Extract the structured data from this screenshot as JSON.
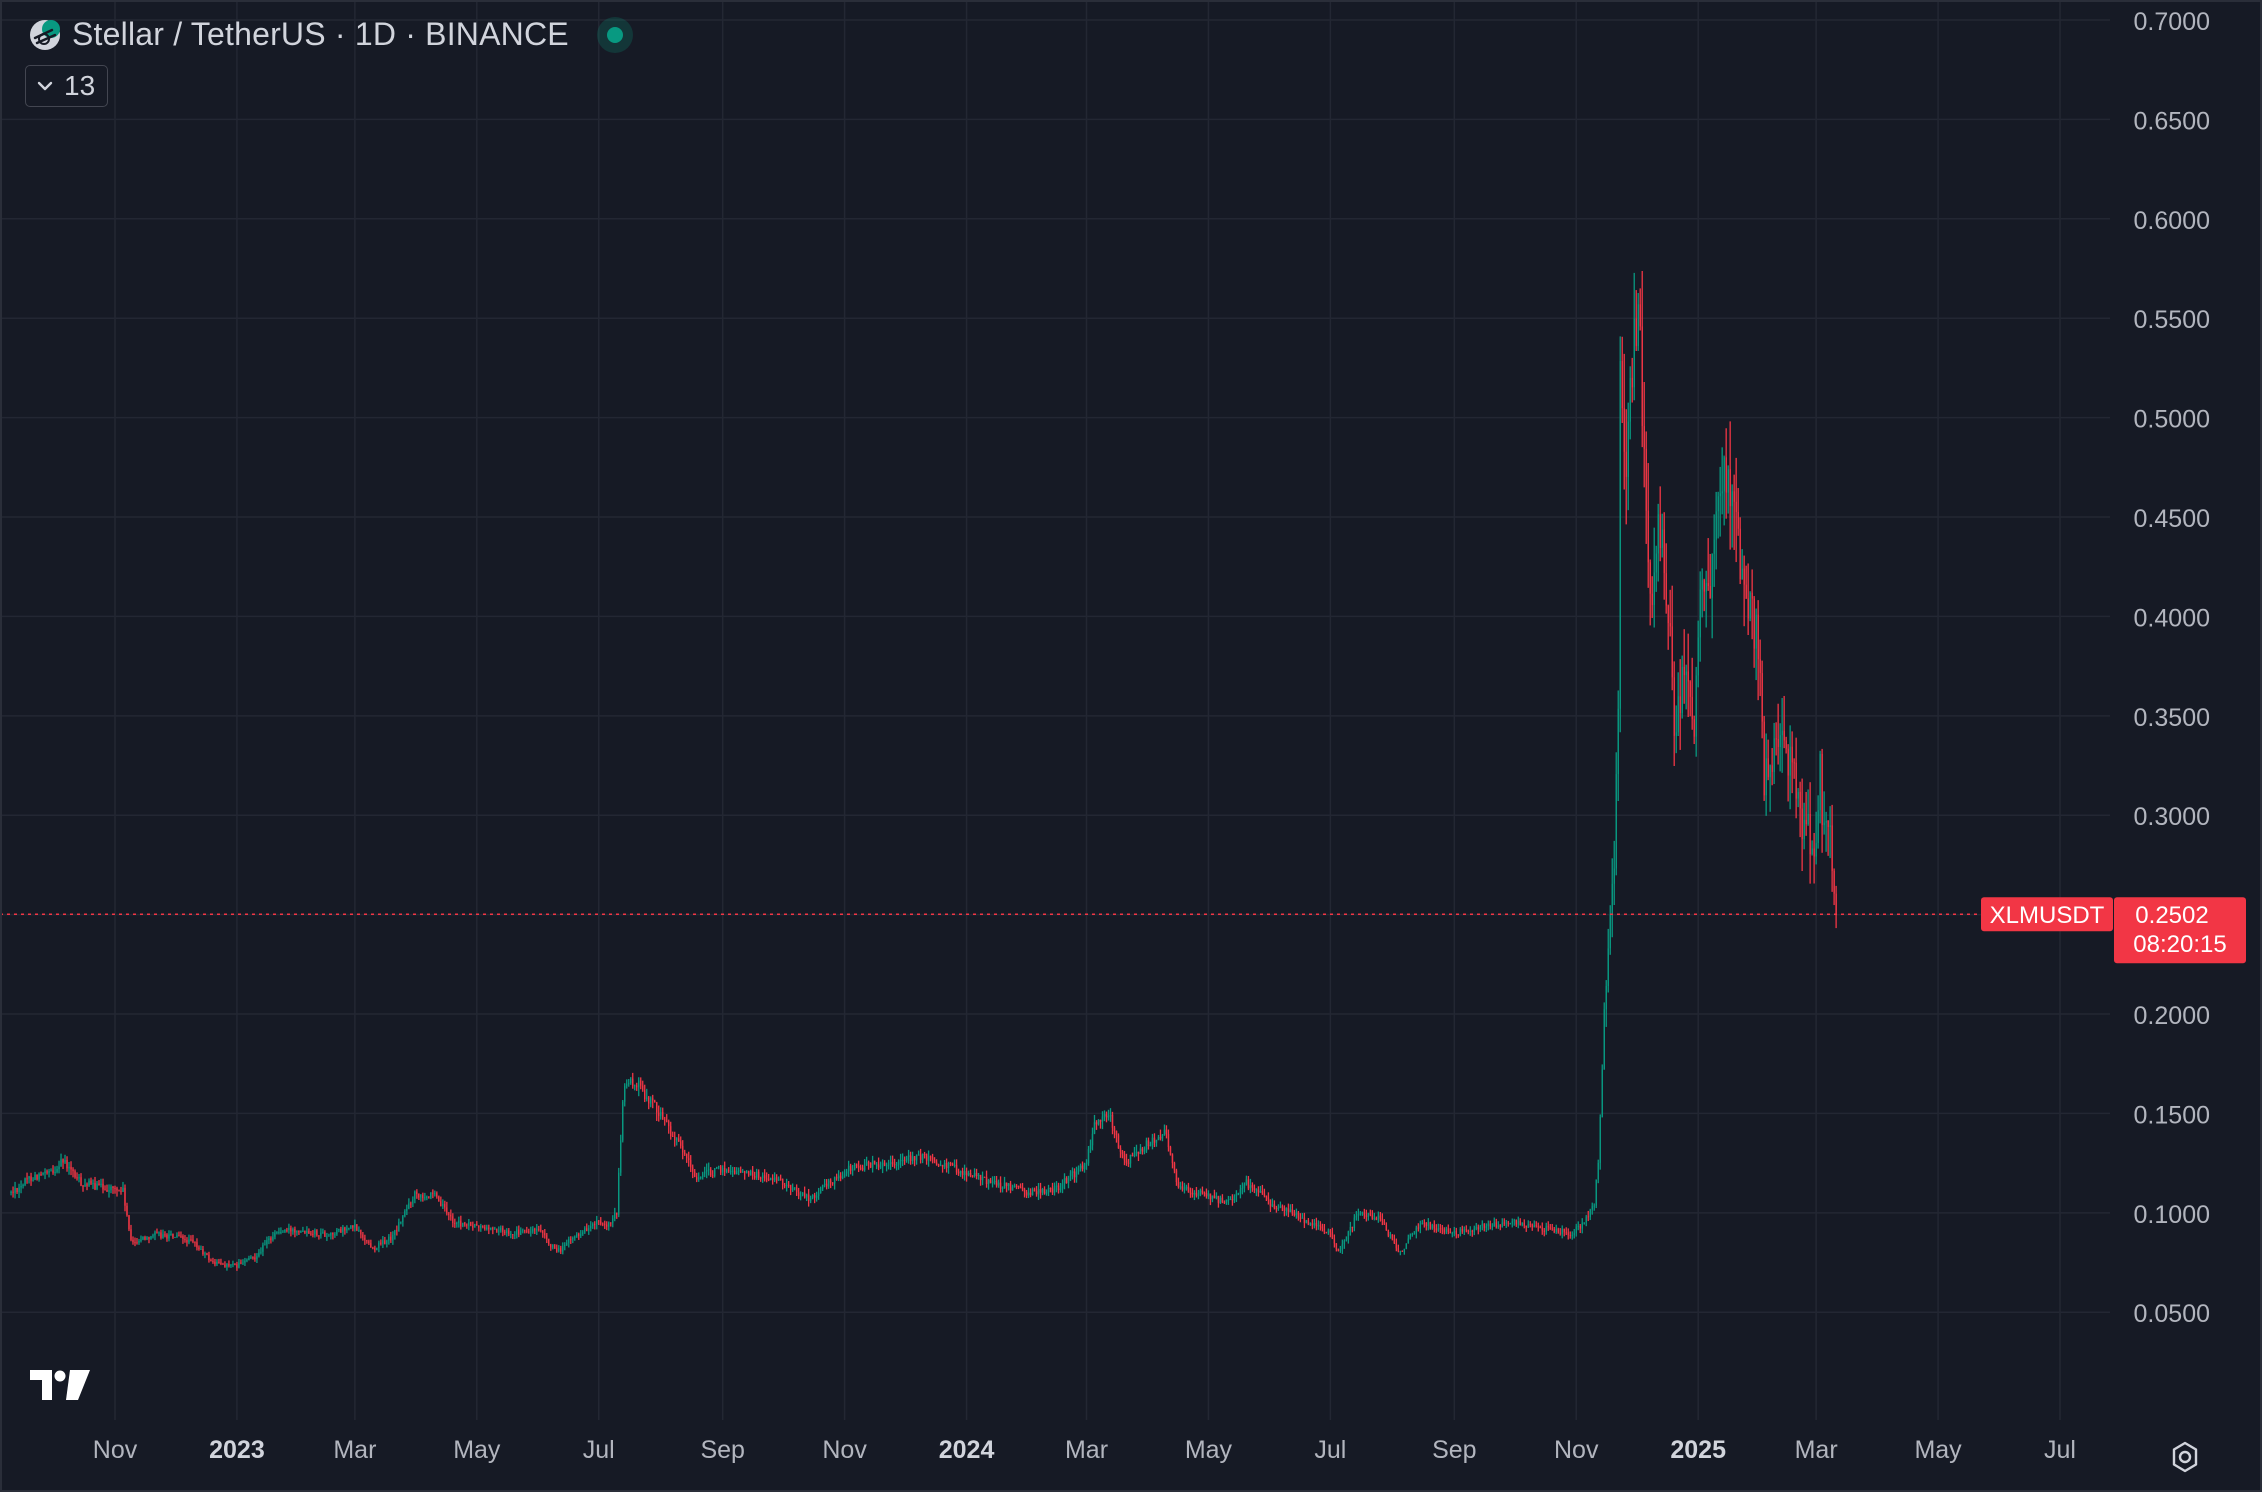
{
  "header": {
    "title": "Stellar / TetherUS · 1D · BINANCE",
    "indicator_count": "13"
  },
  "colors": {
    "background": "#161a25",
    "grid": "#232733",
    "text": "#b2b5be",
    "up": "#089981",
    "down": "#f23645",
    "price_line": "#f23645"
  },
  "icons": {
    "symbol": "stellar-logo-icon",
    "status": "market-open-dot-icon",
    "collapse": "chevron-down-icon",
    "brand": "tradingview-logo-icon",
    "settings": "settings-gear-icon"
  },
  "price_label": {
    "symbol": "XLMUSDT",
    "price": "0.2502",
    "countdown": "08:20:15"
  },
  "chart_data": {
    "type": "candlestick",
    "ylim": [
      0.03,
      0.7
    ],
    "y_ticks": [
      "0.7000",
      "0.6500",
      "0.6000",
      "0.5500",
      "0.5000",
      "0.4500",
      "0.4000",
      "0.3500",
      "0.3000",
      "0.2500",
      "0.2000",
      "0.1500",
      "0.1000",
      "0.0500"
    ],
    "y_tick_values": [
      0.7,
      0.65,
      0.6,
      0.55,
      0.5,
      0.45,
      0.4,
      0.35,
      0.3,
      0.25,
      0.2,
      0.15,
      0.1,
      0.05
    ],
    "x_ticks": [
      {
        "label": "Nov",
        "date": "2022-11-01",
        "bold": false
      },
      {
        "label": "2023",
        "date": "2023-01-01",
        "bold": true
      },
      {
        "label": "Mar",
        "date": "2023-03-01",
        "bold": false
      },
      {
        "label": "May",
        "date": "2023-05-01",
        "bold": false
      },
      {
        "label": "Jul",
        "date": "2023-07-01",
        "bold": false
      },
      {
        "label": "Sep",
        "date": "2023-09-01",
        "bold": false
      },
      {
        "label": "Nov",
        "date": "2023-11-01",
        "bold": false
      },
      {
        "label": "2024",
        "date": "2024-01-01",
        "bold": true
      },
      {
        "label": "Mar",
        "date": "2024-03-01",
        "bold": false
      },
      {
        "label": "May",
        "date": "2024-05-01",
        "bold": false
      },
      {
        "label": "Jul",
        "date": "2024-07-01",
        "bold": false
      },
      {
        "label": "Sep",
        "date": "2024-09-01",
        "bold": false
      },
      {
        "label": "Nov",
        "date": "2024-11-01",
        "bold": false
      },
      {
        "label": "2025",
        "date": "2025-01-01",
        "bold": true
      },
      {
        "label": "Mar",
        "date": "2025-03-01",
        "bold": false
      },
      {
        "label": "May",
        "date": "2025-05-01",
        "bold": false
      },
      {
        "label": "Jul",
        "date": "2025-07-01",
        "bold": false
      }
    ],
    "last_close": 0.2502,
    "series": [
      {
        "interval": "1D",
        "closes": [
          [
            "2022-09-10",
            0.11
          ],
          [
            "2022-09-20",
            0.118
          ],
          [
            "2022-10-01",
            0.12
          ],
          [
            "2022-10-05",
            0.127
          ],
          [
            "2022-10-15",
            0.115
          ],
          [
            "2022-10-25",
            0.113
          ],
          [
            "2022-11-05",
            0.111
          ],
          [
            "2022-11-09",
            0.085
          ],
          [
            "2022-11-20",
            0.089
          ],
          [
            "2022-12-01",
            0.088
          ],
          [
            "2022-12-10",
            0.085
          ],
          [
            "2022-12-20",
            0.075
          ],
          [
            "2022-12-31",
            0.073
          ],
          [
            "2023-01-10",
            0.078
          ],
          [
            "2023-01-20",
            0.09
          ],
          [
            "2023-02-01",
            0.092
          ],
          [
            "2023-02-15",
            0.089
          ],
          [
            "2023-03-01",
            0.093
          ],
          [
            "2023-03-10",
            0.082
          ],
          [
            "2023-03-20",
            0.088
          ],
          [
            "2023-03-31",
            0.11
          ],
          [
            "2023-04-10",
            0.108
          ],
          [
            "2023-04-20",
            0.095
          ],
          [
            "2023-05-01",
            0.093
          ],
          [
            "2023-05-20",
            0.09
          ],
          [
            "2023-06-01",
            0.091
          ],
          [
            "2023-06-10",
            0.08
          ],
          [
            "2023-06-20",
            0.089
          ],
          [
            "2023-06-30",
            0.095
          ],
          [
            "2023-07-05",
            0.092
          ],
          [
            "2023-07-10",
            0.1
          ],
          [
            "2023-07-13",
            0.155
          ],
          [
            "2023-07-14",
            0.165
          ],
          [
            "2023-07-20",
            0.165
          ],
          [
            "2023-08-01",
            0.15
          ],
          [
            "2023-08-15",
            0.125
          ],
          [
            "2023-08-18",
            0.118
          ],
          [
            "2023-09-01",
            0.122
          ],
          [
            "2023-09-15",
            0.12
          ],
          [
            "2023-10-01",
            0.115
          ],
          [
            "2023-10-15",
            0.107
          ],
          [
            "2023-10-24",
            0.115
          ],
          [
            "2023-11-05",
            0.123
          ],
          [
            "2023-11-20",
            0.125
          ],
          [
            "2023-12-10",
            0.128
          ],
          [
            "2023-12-20",
            0.125
          ],
          [
            "2024-01-01",
            0.12
          ],
          [
            "2024-01-15",
            0.115
          ],
          [
            "2024-02-01",
            0.11
          ],
          [
            "2024-02-15",
            0.112
          ],
          [
            "2024-03-01",
            0.125
          ],
          [
            "2024-03-05",
            0.145
          ],
          [
            "2024-03-12",
            0.15
          ],
          [
            "2024-03-20",
            0.125
          ],
          [
            "2024-04-01",
            0.135
          ],
          [
            "2024-04-10",
            0.14
          ],
          [
            "2024-04-15",
            0.115
          ],
          [
            "2024-04-25",
            0.11
          ],
          [
            "2024-05-10",
            0.105
          ],
          [
            "2024-05-20",
            0.115
          ],
          [
            "2024-06-01",
            0.105
          ],
          [
            "2024-06-15",
            0.098
          ],
          [
            "2024-07-01",
            0.09
          ],
          [
            "2024-07-05",
            0.08
          ],
          [
            "2024-07-15",
            0.1
          ],
          [
            "2024-07-25",
            0.098
          ],
          [
            "2024-08-05",
            0.08
          ],
          [
            "2024-08-15",
            0.095
          ],
          [
            "2024-09-01",
            0.09
          ],
          [
            "2024-09-15",
            0.093
          ],
          [
            "2024-10-01",
            0.095
          ],
          [
            "2024-10-15",
            0.092
          ],
          [
            "2024-10-30",
            0.09
          ],
          [
            "2024-11-05",
            0.095
          ],
          [
            "2024-11-10",
            0.105
          ],
          [
            "2024-11-12",
            0.125
          ],
          [
            "2024-11-15",
            0.2
          ],
          [
            "2024-11-17",
            0.24
          ],
          [
            "2024-11-20",
            0.27
          ],
          [
            "2024-11-22",
            0.35
          ],
          [
            "2024-11-23",
            0.52
          ],
          [
            "2024-11-26",
            0.47
          ],
          [
            "2024-11-29",
            0.53
          ],
          [
            "2024-12-02",
            0.56
          ],
          [
            "2024-12-05",
            0.47
          ],
          [
            "2024-12-09",
            0.4
          ],
          [
            "2024-12-12",
            0.44
          ],
          [
            "2024-12-16",
            0.42
          ],
          [
            "2024-12-20",
            0.35
          ],
          [
            "2024-12-25",
            0.37
          ],
          [
            "2024-12-30",
            0.34
          ],
          [
            "2025-01-03",
            0.42
          ],
          [
            "2025-01-07",
            0.41
          ],
          [
            "2025-01-10",
            0.44
          ],
          [
            "2025-01-16",
            0.48
          ],
          [
            "2025-01-20",
            0.44
          ],
          [
            "2025-01-24",
            0.42
          ],
          [
            "2025-01-28",
            0.4
          ],
          [
            "2025-02-01",
            0.38
          ],
          [
            "2025-02-03",
            0.32
          ],
          [
            "2025-02-07",
            0.33
          ],
          [
            "2025-02-12",
            0.34
          ],
          [
            "2025-02-18",
            0.32
          ],
          [
            "2025-02-21",
            0.3
          ],
          [
            "2025-02-26",
            0.29
          ],
          [
            "2025-03-01",
            0.28
          ],
          [
            "2025-03-03",
            0.34
          ],
          [
            "2025-03-04",
            0.29
          ],
          [
            "2025-03-07",
            0.3
          ],
          [
            "2025-03-10",
            0.26
          ],
          [
            "2025-03-11",
            0.2502
          ]
        ]
      }
    ]
  }
}
